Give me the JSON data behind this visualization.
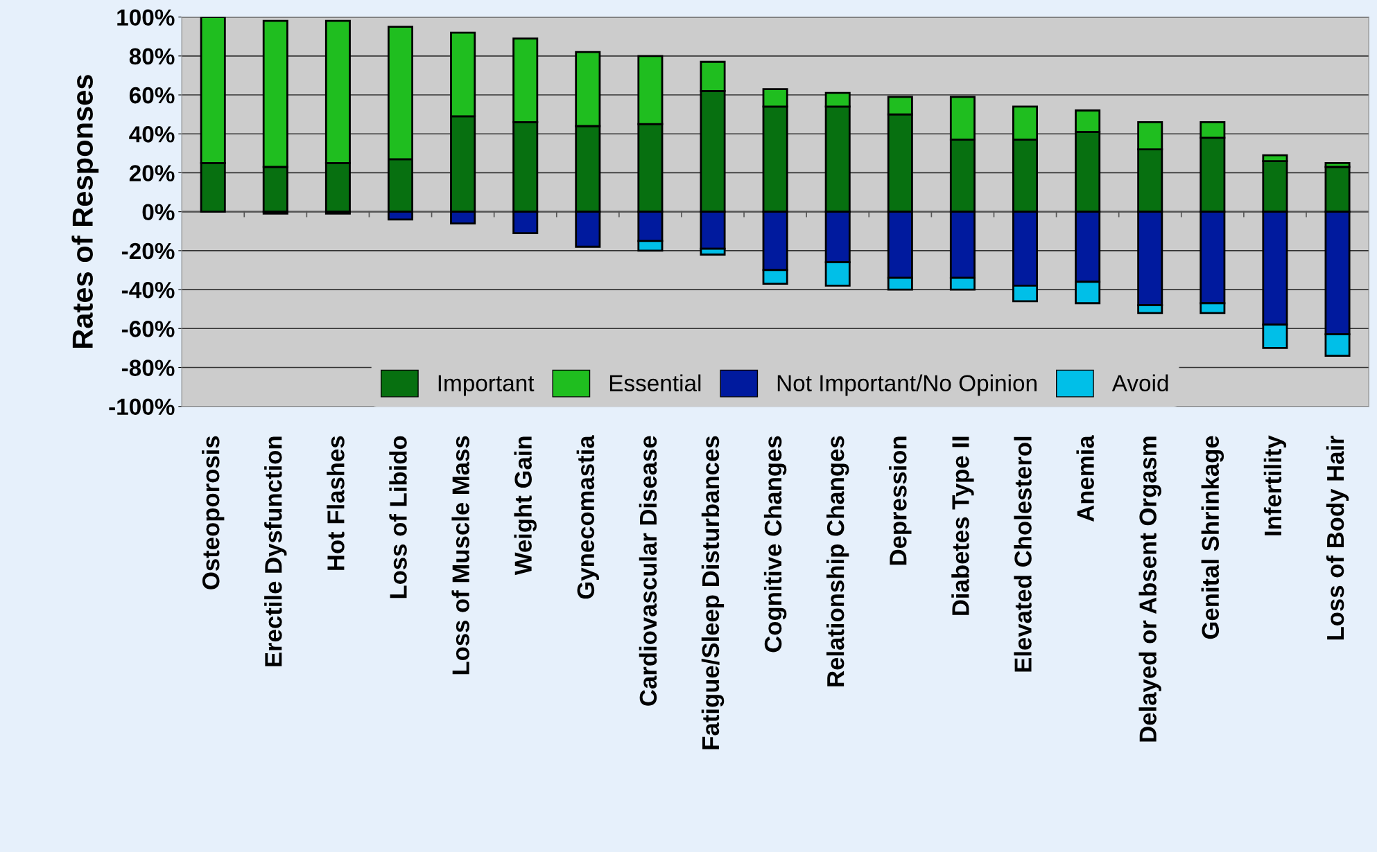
{
  "chart_data": {
    "type": "bar",
    "stacked": true,
    "ylabel": "Rates of Responses",
    "categories": [
      "Osteoporosis",
      "Erectile Dysfunction",
      "Hot Flashes",
      "Loss of Libido",
      "Loss of Muscle Mass",
      "Weight Gain",
      "Gynecomastia",
      "Cardiovascular Disease",
      "Fatigue/Sleep Disturbances",
      "Cognitive Changes",
      "Relationship Changes",
      "Depression",
      "Diabetes Type II",
      "Elevated Cholesterol",
      "Anemia",
      "Delayed or Absent Orgasm",
      "Genital Shrinkage",
      "Infertility",
      "Loss of Body Hair"
    ],
    "series": [
      {
        "name": "Important",
        "color": "#077010",
        "values": [
          25,
          23,
          25,
          27,
          49,
          46,
          44,
          45,
          62,
          54,
          54,
          50,
          37,
          37,
          41,
          32,
          38,
          26,
          23
        ]
      },
      {
        "name": "Essential",
        "color": "#1fbe1f",
        "values": [
          75,
          75,
          73,
          68,
          43,
          43,
          38,
          35,
          15,
          9,
          7,
          9,
          22,
          17,
          11,
          14,
          8,
          3,
          2
        ]
      },
      {
        "name": "Not Important/No Opinion",
        "color": "#001a9e",
        "values": [
          0,
          -1,
          -1,
          -4,
          -6,
          -11,
          -18,
          -15,
          -19,
          -30,
          -26,
          -34,
          -34,
          -38,
          -36,
          -48,
          -47,
          -58,
          -63
        ]
      },
      {
        "name": "Avoid",
        "color": "#00bfe8",
        "values": [
          0,
          0,
          0,
          0,
          0,
          0,
          0,
          -5,
          -3,
          -7,
          -12,
          -6,
          -6,
          -8,
          -11,
          -4,
          -5,
          -12,
          -11
        ]
      }
    ],
    "ylim": [
      -100,
      100
    ],
    "yticks": [
      {
        "value": 100,
        "label": "100%"
      },
      {
        "value": 80,
        "label": "80%"
      },
      {
        "value": 60,
        "label": "60%"
      },
      {
        "value": 40,
        "label": "40%"
      },
      {
        "value": 20,
        "label": "20%"
      },
      {
        "value": 0,
        "label": "0%"
      },
      {
        "value": -20,
        "label": "-20%"
      },
      {
        "value": -40,
        "label": "-40%"
      },
      {
        "value": -60,
        "label": "-60%"
      },
      {
        "value": -80,
        "label": "-80%"
      },
      {
        "value": -100,
        "label": "-100%"
      }
    ],
    "grid": "y",
    "legend": "bottom"
  }
}
